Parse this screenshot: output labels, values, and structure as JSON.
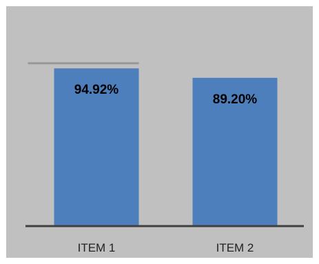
{
  "chart_data": {
    "type": "bar",
    "categories": [
      "ITEM 1",
      "ITEM 2"
    ],
    "values": [
      94.92,
      89.2
    ],
    "value_labels": [
      "94.92%",
      "89.20%"
    ],
    "reference_line": {
      "category": "ITEM 1",
      "value": 98.0
    },
    "ylim": [
      0,
      100
    ],
    "grid": false,
    "legend": "none",
    "title": "",
    "xlabel": "",
    "ylabel": "",
    "colors": {
      "bar": "#4e7fbd",
      "background": "#c0c0c0",
      "axis": "#3f3f3f",
      "reference_line": "#999999"
    }
  }
}
